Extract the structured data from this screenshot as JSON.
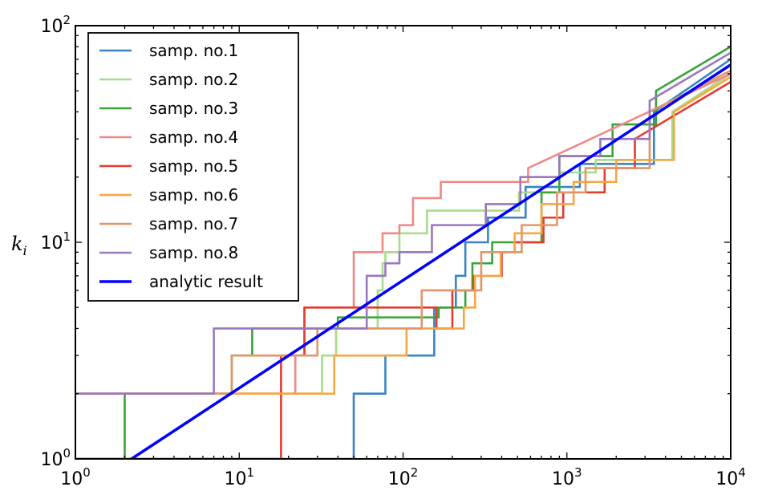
{
  "chart_data": {
    "type": "line",
    "title": "",
    "xlabel": "",
    "ylabel": "k_i",
    "xscale": "log",
    "yscale": "log",
    "xlim": [
      1,
      10000
    ],
    "ylim": [
      1,
      100
    ],
    "grid": false,
    "legend_position": "top-left",
    "x_ticks": [
      {
        "base": "10",
        "exp": "0"
      },
      {
        "base": "10",
        "exp": "1"
      },
      {
        "base": "10",
        "exp": "2"
      },
      {
        "base": "10",
        "exp": "3"
      },
      {
        "base": "10",
        "exp": "4"
      }
    ],
    "y_ticks": [
      {
        "base": "10",
        "exp": "0"
      },
      {
        "base": "10",
        "exp": "1"
      },
      {
        "base": "10",
        "exp": "2"
      }
    ],
    "series": [
      {
        "name": "samp. no.1",
        "color": "#3a84c6",
        "style": "step",
        "points": [
          [
            1,
            1
          ],
          [
            50,
            1
          ],
          [
            50,
            2
          ],
          [
            78,
            2
          ],
          [
            78,
            3
          ],
          [
            155,
            3
          ],
          [
            155,
            5
          ],
          [
            210,
            5
          ],
          [
            210,
            7
          ],
          [
            240,
            7
          ],
          [
            240,
            10
          ],
          [
            330,
            10
          ],
          [
            330,
            13
          ],
          [
            560,
            13
          ],
          [
            560,
            18
          ],
          [
            1200,
            18
          ],
          [
            1200,
            23
          ],
          [
            3400,
            23
          ],
          [
            3400,
            40
          ],
          [
            10000,
            70
          ]
        ]
      },
      {
        "name": "samp. no.2",
        "color": "#a8dc8b",
        "style": "step",
        "points": [
          [
            1,
            2
          ],
          [
            32,
            2
          ],
          [
            32,
            3
          ],
          [
            39,
            3
          ],
          [
            39,
            4
          ],
          [
            70,
            4
          ],
          [
            70,
            6
          ],
          [
            75,
            6
          ],
          [
            75,
            8
          ],
          [
            78,
            8
          ],
          [
            78,
            9
          ],
          [
            95,
            9
          ],
          [
            95,
            11
          ],
          [
            140,
            11
          ],
          [
            140,
            14
          ],
          [
            510,
            14
          ],
          [
            510,
            17
          ],
          [
            900,
            17
          ],
          [
            900,
            21
          ],
          [
            1500,
            21
          ],
          [
            1500,
            24
          ],
          [
            4400,
            24
          ],
          [
            4400,
            40
          ],
          [
            10000,
            60
          ]
        ]
      },
      {
        "name": "samp. no.3",
        "color": "#3aa33a",
        "style": "step",
        "points": [
          [
            1,
            1
          ],
          [
            2,
            1
          ],
          [
            2,
            2
          ],
          [
            9,
            2
          ],
          [
            9,
            3
          ],
          [
            12,
            3
          ],
          [
            12,
            4
          ],
          [
            40,
            4
          ],
          [
            40,
            4.5
          ],
          [
            165,
            4.5
          ],
          [
            165,
            5
          ],
          [
            240,
            5
          ],
          [
            240,
            6
          ],
          [
            265,
            6
          ],
          [
            265,
            8
          ],
          [
            350,
            8
          ],
          [
            350,
            10
          ],
          [
            700,
            10
          ],
          [
            700,
            17
          ],
          [
            900,
            17
          ],
          [
            900,
            25
          ],
          [
            1900,
            25
          ],
          [
            1900,
            35
          ],
          [
            3500,
            35
          ],
          [
            3500,
            50
          ],
          [
            10000,
            80
          ]
        ]
      },
      {
        "name": "samp. no.4",
        "color": "#f08888",
        "style": "step",
        "points": [
          [
            1,
            2
          ],
          [
            3,
            2
          ],
          [
            3,
            2
          ],
          [
            22,
            2
          ],
          [
            22,
            3
          ],
          [
            25,
            3
          ],
          [
            25,
            5
          ],
          [
            50,
            5
          ],
          [
            50,
            9
          ],
          [
            75,
            9
          ],
          [
            75,
            11
          ],
          [
            95,
            11
          ],
          [
            95,
            12
          ],
          [
            115,
            12
          ],
          [
            115,
            16
          ],
          [
            170,
            16
          ],
          [
            170,
            19
          ],
          [
            580,
            19
          ],
          [
            580,
            22
          ],
          [
            10000,
            60
          ]
        ]
      },
      {
        "name": "samp. no.5",
        "color": "#e33c2f",
        "style": "step",
        "points": [
          [
            1,
            1
          ],
          [
            18,
            1
          ],
          [
            18,
            3
          ],
          [
            25,
            3
          ],
          [
            25,
            5
          ],
          [
            160,
            5
          ],
          [
            160,
            4
          ],
          [
            200,
            4
          ],
          [
            200,
            6
          ],
          [
            270,
            6
          ],
          [
            270,
            7
          ],
          [
            400,
            7
          ],
          [
            400,
            9
          ],
          [
            480,
            9
          ],
          [
            480,
            10
          ],
          [
            720,
            10
          ],
          [
            720,
            13
          ],
          [
            950,
            13
          ],
          [
            950,
            17
          ],
          [
            1700,
            17
          ],
          [
            1700,
            22
          ],
          [
            2600,
            22
          ],
          [
            2600,
            30
          ],
          [
            10000,
            55
          ]
        ]
      },
      {
        "name": "samp. no.6",
        "color": "#f8a640",
        "style": "step",
        "points": [
          [
            1,
            2
          ],
          [
            38,
            2
          ],
          [
            38,
            3
          ],
          [
            105,
            3
          ],
          [
            105,
            4
          ],
          [
            235,
            4
          ],
          [
            235,
            5
          ],
          [
            275,
            5
          ],
          [
            275,
            7
          ],
          [
            395,
            7
          ],
          [
            395,
            9
          ],
          [
            480,
            9
          ],
          [
            480,
            11
          ],
          [
            700,
            11
          ],
          [
            700,
            15
          ],
          [
            1100,
            15
          ],
          [
            1100,
            19
          ],
          [
            2000,
            19
          ],
          [
            2000,
            24
          ],
          [
            4500,
            24
          ],
          [
            4500,
            40
          ],
          [
            10000,
            58
          ]
        ]
      },
      {
        "name": "samp. no.7",
        "color": "#e0966a",
        "style": "step",
        "points": [
          [
            1,
            2
          ],
          [
            9,
            2
          ],
          [
            9,
            3
          ],
          [
            30,
            3
          ],
          [
            30,
            4
          ],
          [
            130,
            4
          ],
          [
            130,
            6
          ],
          [
            300,
            6
          ],
          [
            300,
            9
          ],
          [
            530,
            9
          ],
          [
            530,
            12
          ],
          [
            870,
            12
          ],
          [
            870,
            17
          ],
          [
            1300,
            17
          ],
          [
            1300,
            22
          ],
          [
            3200,
            22
          ],
          [
            3200,
            40
          ],
          [
            10000,
            62
          ]
        ]
      },
      {
        "name": "samp. no.8",
        "color": "#9a78bd",
        "style": "step",
        "points": [
          [
            1,
            2
          ],
          [
            7,
            2
          ],
          [
            7,
            4
          ],
          [
            25,
            4
          ],
          [
            25,
            4
          ],
          [
            60,
            4
          ],
          [
            60,
            7
          ],
          [
            78,
            7
          ],
          [
            78,
            8
          ],
          [
            95,
            8
          ],
          [
            95,
            9
          ],
          [
            150,
            9
          ],
          [
            150,
            12
          ],
          [
            320,
            12
          ],
          [
            320,
            15
          ],
          [
            520,
            15
          ],
          [
            520,
            20
          ],
          [
            900,
            20
          ],
          [
            900,
            25
          ],
          [
            1600,
            25
          ],
          [
            1600,
            30
          ],
          [
            3200,
            30
          ],
          [
            3200,
            45
          ],
          [
            10000,
            75
          ]
        ]
      },
      {
        "name": "analytic result",
        "color": "#0000ff",
        "style": "line",
        "width": 3.5,
        "points": [
          [
            2.2,
            1
          ],
          [
            10000,
            66
          ]
        ]
      }
    ]
  }
}
